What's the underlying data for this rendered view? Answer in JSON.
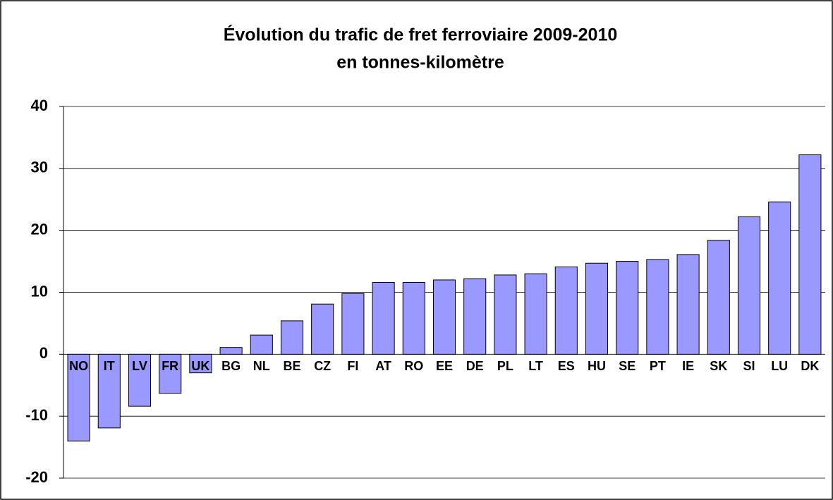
{
  "chart_data": {
    "type": "bar",
    "title": "Évolution du trafic de fret ferroviaire 2009-2010",
    "subtitle": "en tonnes-kilomètre",
    "categories": [
      "NO",
      "IT",
      "LV",
      "FR",
      "UK",
      "BG",
      "NL",
      "BE",
      "CZ",
      "FI",
      "AT",
      "RO",
      "EE",
      "DE",
      "PL",
      "LT",
      "ES",
      "HU",
      "SE",
      "PT",
      "IE",
      "SK",
      "SI",
      "LU",
      "DK"
    ],
    "values": [
      -14.0,
      -11.9,
      -8.4,
      -6.3,
      -3.0,
      1.1,
      3.1,
      5.4,
      8.1,
      9.8,
      11.6,
      11.6,
      12.0,
      12.2,
      12.8,
      13.0,
      14.1,
      14.7,
      15.0,
      15.3,
      16.1,
      18.4,
      22.2,
      24.6,
      32.2
    ],
    "color": "#9999ff",
    "ylim": [
      -20,
      40
    ],
    "yticks": [
      -20,
      -10,
      0,
      10,
      20,
      30,
      40
    ],
    "grid": true
  }
}
